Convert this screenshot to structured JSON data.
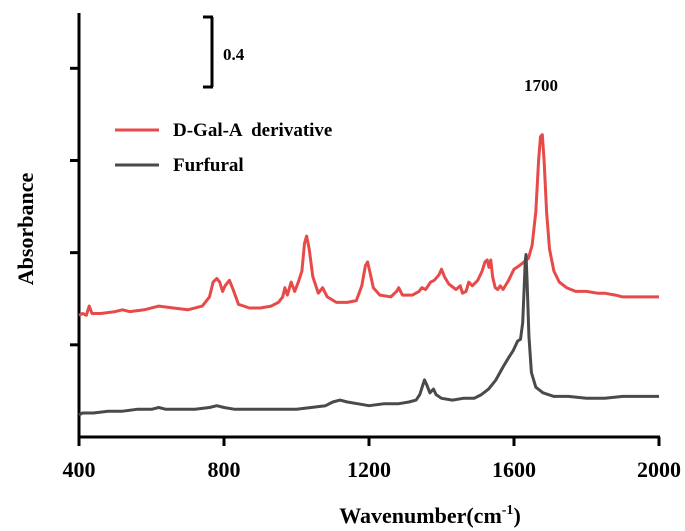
{
  "chart_data": {
    "type": "line",
    "title": "",
    "xlabel": "Wavenumber(cm",
    "xlabel_sup": "-1",
    "xlabel_close": ")",
    "ylabel": "Absorbance",
    "xlim": [
      400,
      2000
    ],
    "x_ticks": [
      "400",
      "800",
      "1200",
      "1600",
      "2000"
    ],
    "ylim": [
      0,
      2.3
    ],
    "y_tick_values": [
      0.5,
      1.0,
      1.5,
      2.0
    ],
    "scale_bar": {
      "label": "0.4",
      "value": 0.4
    },
    "annotation": {
      "label": "1700",
      "x": 1675
    },
    "legend_position": "top-left",
    "series": [
      {
        "name": "D-Gal-A  derivative",
        "color": "#e84a4a",
        "points": [
          [
            400,
            0.66
          ],
          [
            410,
            0.67
          ],
          [
            420,
            0.66
          ],
          [
            428,
            0.71
          ],
          [
            436,
            0.67
          ],
          [
            460,
            0.67
          ],
          [
            500,
            0.68
          ],
          [
            520,
            0.69
          ],
          [
            540,
            0.68
          ],
          [
            580,
            0.69
          ],
          [
            620,
            0.71
          ],
          [
            660,
            0.7
          ],
          [
            700,
            0.69
          ],
          [
            740,
            0.71
          ],
          [
            760,
            0.76
          ],
          [
            770,
            0.84
          ],
          [
            780,
            0.86
          ],
          [
            788,
            0.84
          ],
          [
            796,
            0.79
          ],
          [
            803,
            0.82
          ],
          [
            815,
            0.85
          ],
          [
            825,
            0.8
          ],
          [
            840,
            0.72
          ],
          [
            870,
            0.7
          ],
          [
            900,
            0.7
          ],
          [
            930,
            0.71
          ],
          [
            950,
            0.73
          ],
          [
            962,
            0.76
          ],
          [
            968,
            0.81
          ],
          [
            975,
            0.77
          ],
          [
            985,
            0.84
          ],
          [
            995,
            0.79
          ],
          [
            1005,
            0.84
          ],
          [
            1015,
            0.9
          ],
          [
            1022,
            1.05
          ],
          [
            1028,
            1.09
          ],
          [
            1035,
            1.02
          ],
          [
            1045,
            0.87
          ],
          [
            1060,
            0.78
          ],
          [
            1072,
            0.81
          ],
          [
            1085,
            0.76
          ],
          [
            1110,
            0.73
          ],
          [
            1140,
            0.73
          ],
          [
            1165,
            0.74
          ],
          [
            1180,
            0.82
          ],
          [
            1190,
            0.93
          ],
          [
            1196,
            0.95
          ],
          [
            1202,
            0.9
          ],
          [
            1212,
            0.81
          ],
          [
            1230,
            0.77
          ],
          [
            1260,
            0.76
          ],
          [
            1276,
            0.79
          ],
          [
            1282,
            0.81
          ],
          [
            1292,
            0.77
          ],
          [
            1320,
            0.77
          ],
          [
            1338,
            0.79
          ],
          [
            1346,
            0.81
          ],
          [
            1356,
            0.8
          ],
          [
            1370,
            0.84
          ],
          [
            1380,
            0.85
          ],
          [
            1393,
            0.88
          ],
          [
            1400,
            0.91
          ],
          [
            1408,
            0.87
          ],
          [
            1420,
            0.83
          ],
          [
            1440,
            0.8
          ],
          [
            1452,
            0.82
          ],
          [
            1458,
            0.78
          ],
          [
            1468,
            0.79
          ],
          [
            1475,
            0.84
          ],
          [
            1485,
            0.82
          ],
          [
            1500,
            0.85
          ],
          [
            1512,
            0.9
          ],
          [
            1520,
            0.95
          ],
          [
            1526,
            0.96
          ],
          [
            1531,
            0.92
          ],
          [
            1536,
            0.96
          ],
          [
            1541,
            0.87
          ],
          [
            1548,
            0.81
          ],
          [
            1555,
            0.8
          ],
          [
            1562,
            0.82
          ],
          [
            1570,
            0.8
          ],
          [
            1585,
            0.85
          ],
          [
            1600,
            0.91
          ],
          [
            1615,
            0.93
          ],
          [
            1628,
            0.95
          ],
          [
            1640,
            0.97
          ],
          [
            1650,
            1.04
          ],
          [
            1660,
            1.22
          ],
          [
            1668,
            1.5
          ],
          [
            1673,
            1.63
          ],
          [
            1678,
            1.64
          ],
          [
            1683,
            1.5
          ],
          [
            1690,
            1.22
          ],
          [
            1698,
            1.02
          ],
          [
            1710,
            0.9
          ],
          [
            1725,
            0.84
          ],
          [
            1745,
            0.81
          ],
          [
            1770,
            0.79
          ],
          [
            1800,
            0.79
          ],
          [
            1830,
            0.78
          ],
          [
            1850,
            0.78
          ],
          [
            1880,
            0.77
          ],
          [
            1900,
            0.76
          ],
          [
            1930,
            0.76
          ],
          [
            1960,
            0.76
          ],
          [
            2000,
            0.76
          ]
        ]
      },
      {
        "name": "Furfural",
        "color": "#4a4a4a",
        "points": [
          [
            400,
            0.12
          ],
          [
            410,
            0.13
          ],
          [
            440,
            0.13
          ],
          [
            480,
            0.14
          ],
          [
            520,
            0.14
          ],
          [
            560,
            0.15
          ],
          [
            600,
            0.15
          ],
          [
            620,
            0.16
          ],
          [
            640,
            0.15
          ],
          [
            680,
            0.15
          ],
          [
            720,
            0.15
          ],
          [
            760,
            0.16
          ],
          [
            780,
            0.17
          ],
          [
            800,
            0.16
          ],
          [
            830,
            0.15
          ],
          [
            880,
            0.15
          ],
          [
            920,
            0.15
          ],
          [
            960,
            0.15
          ],
          [
            1000,
            0.15
          ],
          [
            1040,
            0.16
          ],
          [
            1080,
            0.17
          ],
          [
            1100,
            0.19
          ],
          [
            1120,
            0.2
          ],
          [
            1140,
            0.19
          ],
          [
            1170,
            0.18
          ],
          [
            1200,
            0.17
          ],
          [
            1240,
            0.18
          ],
          [
            1280,
            0.18
          ],
          [
            1310,
            0.19
          ],
          [
            1330,
            0.2
          ],
          [
            1340,
            0.23
          ],
          [
            1348,
            0.28
          ],
          [
            1353,
            0.31
          ],
          [
            1360,
            0.28
          ],
          [
            1368,
            0.24
          ],
          [
            1378,
            0.26
          ],
          [
            1385,
            0.23
          ],
          [
            1400,
            0.21
          ],
          [
            1430,
            0.2
          ],
          [
            1460,
            0.21
          ],
          [
            1490,
            0.21
          ],
          [
            1510,
            0.23
          ],
          [
            1530,
            0.26
          ],
          [
            1550,
            0.31
          ],
          [
            1570,
            0.38
          ],
          [
            1585,
            0.43
          ],
          [
            1598,
            0.47
          ],
          [
            1610,
            0.52
          ],
          [
            1618,
            0.53
          ],
          [
            1624,
            0.62
          ],
          [
            1628,
            0.8
          ],
          [
            1631,
            0.95
          ],
          [
            1633,
            0.99
          ],
          [
            1636,
            0.86
          ],
          [
            1641,
            0.55
          ],
          [
            1648,
            0.35
          ],
          [
            1660,
            0.27
          ],
          [
            1680,
            0.24
          ],
          [
            1710,
            0.22
          ],
          [
            1750,
            0.22
          ],
          [
            1800,
            0.21
          ],
          [
            1850,
            0.21
          ],
          [
            1900,
            0.22
          ],
          [
            1950,
            0.22
          ],
          [
            2000,
            0.22
          ]
        ]
      }
    ]
  }
}
